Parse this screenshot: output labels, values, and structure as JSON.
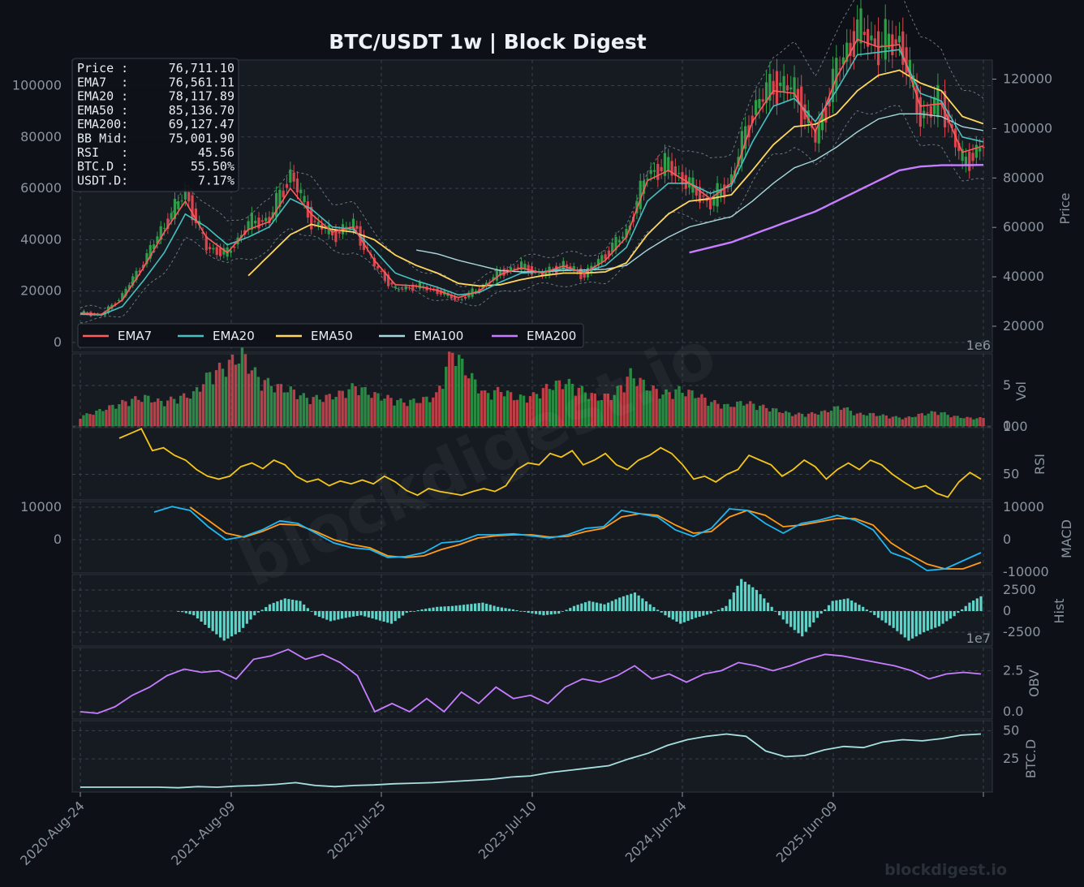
{
  "title": "BTC/USDT  1w  |  Block Digest",
  "watermark": "blockdigest.io",
  "footer_watermark": "blockdigest.io",
  "info_box": [
    [
      "Price :",
      "76,711.10"
    ],
    [
      "EMA7  :",
      "76,561.11"
    ],
    [
      "EMA20 :",
      "78,117.89"
    ],
    [
      "EMA50 :",
      "85,136.70"
    ],
    [
      "EMA200:",
      "69,127.47"
    ],
    [
      "BB Mid:",
      "75,001.90"
    ],
    [
      "RSI   :",
      "45.56"
    ],
    [
      "BTC.D :",
      "55.50%"
    ],
    [
      "USDT.D:",
      "7.17%"
    ]
  ],
  "colors": {
    "background": "#0d1117",
    "panel": "#161b22",
    "grid": "#3a414b",
    "up": "#2e9e49",
    "down": "#d9454f",
    "ema7": "#ff5c5c",
    "ema20": "#45c1c1",
    "ema50": "#ffd75e",
    "ema100": "#a8d8dc",
    "ema200": "#c77dff",
    "rsi": "#f5c518",
    "macd": "#1fb7f0",
    "signal": "#ff9a1a",
    "hist": "#5fd4c8",
    "obv": "#c77dff",
    "btcd": "#a8e0e0"
  },
  "chart_data": [
    {
      "type": "candlestick",
      "panel": "price",
      "x_dates": [
        "2020-08-24",
        "2020-10-05",
        "2020-11-16",
        "2021-01-04",
        "2021-02-15",
        "2021-04-05",
        "2021-05-17",
        "2021-07-05",
        "2021-08-09",
        "2021-10-04",
        "2021-11-08",
        "2021-12-20",
        "2022-02-07",
        "2022-04-04",
        "2022-05-16",
        "2022-06-20",
        "2022-07-25",
        "2022-09-12",
        "2022-11-14",
        "2023-01-09",
        "2023-03-13",
        "2023-04-17",
        "2023-06-12",
        "2023-07-10",
        "2023-09-11",
        "2023-10-23",
        "2023-12-11",
        "2024-03-04",
        "2024-04-08",
        "2024-06-24",
        "2024-08-05",
        "2024-10-07",
        "2024-11-11",
        "2024-12-16",
        "2025-02-03",
        "2025-04-07",
        "2025-06-09",
        "2025-07-14",
        "2025-08-18",
        "2025-10-06",
        "2025-11-17",
        "2026-01-05",
        "2026-02-09",
        "2026-03-23"
      ],
      "close": [
        11650,
        10600,
        18400,
        31200,
        46000,
        58500,
        37000,
        34500,
        46300,
        48200,
        66000,
        47500,
        42000,
        46000,
        30000,
        20500,
        22000,
        20000,
        16500,
        20900,
        27500,
        29700,
        26500,
        30300,
        26200,
        34500,
        43000,
        66000,
        69000,
        61000,
        54000,
        64000,
        90000,
        101000,
        98000,
        79000,
        105500,
        122000,
        115500,
        118000,
        88000,
        94000,
        70000,
        76711.1
      ],
      "ema7": [
        11500,
        10900,
        16500,
        29000,
        43000,
        55000,
        41000,
        35000,
        44000,
        47000,
        60000,
        50000,
        43000,
        45000,
        32000,
        22500,
        22000,
        20300,
        17500,
        20000,
        26500,
        29000,
        27000,
        29800,
        27000,
        32000,
        41000,
        63000,
        67000,
        62000,
        56000,
        62000,
        86000,
        98000,
        97000,
        82000,
        103000,
        118000,
        115000,
        116000,
        92000,
        93000,
        74000,
        76561.11
      ],
      "ema20": [
        11000,
        10700,
        14000,
        24000,
        35000,
        50000,
        45000,
        38000,
        41000,
        45000,
        56000,
        52000,
        45000,
        44000,
        36000,
        27000,
        24000,
        21500,
        18500,
        19500,
        23500,
        27000,
        27500,
        28700,
        27500,
        30000,
        37000,
        55000,
        62000,
        62000,
        58000,
        61000,
        78000,
        92000,
        95000,
        86000,
        98000,
        112000,
        113000,
        114000,
        97000,
        94000,
        80000,
        78117.89
      ],
      "ema50": [
        null,
        null,
        null,
        null,
        null,
        null,
        null,
        null,
        26000,
        34000,
        42000,
        46000,
        44000,
        43000,
        40000,
        34000,
        30000,
        27000,
        23000,
        22000,
        22500,
        24500,
        26000,
        27000,
        27000,
        27500,
        31000,
        42000,
        50000,
        55000,
        56000,
        57500,
        67000,
        77000,
        84000,
        85000,
        89000,
        98000,
        104000,
        106000,
        101000,
        98000,
        88000,
        85136.7
      ],
      "ema100": [
        null,
        null,
        null,
        null,
        null,
        null,
        null,
        null,
        null,
        null,
        null,
        null,
        null,
        null,
        null,
        null,
        36000,
        34500,
        32000,
        30000,
        28000,
        27500,
        27500,
        28000,
        28200,
        28500,
        30000,
        36000,
        41000,
        45000,
        47000,
        49000,
        55000,
        62000,
        68000,
        71000,
        76000,
        82000,
        87000,
        89000,
        89000,
        88000,
        84000,
        82500
      ],
      "ema200": [
        null,
        null,
        null,
        null,
        null,
        null,
        null,
        null,
        null,
        null,
        null,
        null,
        null,
        null,
        null,
        null,
        null,
        null,
        null,
        null,
        null,
        null,
        null,
        null,
        null,
        null,
        null,
        null,
        null,
        35000,
        37000,
        39000,
        42000,
        45000,
        48000,
        51000,
        55000,
        59000,
        63000,
        67000,
        68500,
        69000,
        69000,
        69127.47
      ],
      "legend": [
        "EMA7",
        "EMA20",
        "EMA50",
        "EMA100",
        "EMA200"
      ],
      "legend_placement": "bottom-left",
      "y_left_ticks": [
        "0",
        "20000",
        "40000",
        "60000",
        "80000",
        "100000"
      ],
      "y_right_ticks": [
        "20000",
        "40000",
        "60000",
        "80000",
        "100000",
        "120000"
      ],
      "ylabel": "Price",
      "grid": true
    },
    {
      "type": "bar",
      "panel": "volume",
      "ylabel": "Vol",
      "y_ticks": [
        "0",
        "5"
      ],
      "offset_label": "1e6",
      "values_scaled": [
        1.2,
        1.8,
        2.5,
        3.2,
        3.6,
        3.0,
        3.5,
        4.0,
        6.5,
        7.5,
        9.0,
        6.0,
        5.0,
        4.5,
        3.5,
        3.5,
        4.0,
        5.0,
        4.0,
        3.5,
        3.0,
        3.2,
        3.8,
        9.5,
        6.5,
        4.0,
        4.5,
        3.5,
        3.8,
        5.0,
        5.5,
        4.5,
        3.5,
        4.0,
        6.5,
        5.0,
        4.0,
        4.5,
        4.0,
        3.0,
        2.5,
        3.0,
        2.5,
        2.0,
        1.5,
        1.5,
        1.8,
        2.5,
        1.5,
        1.5,
        1.2,
        1.0,
        1.5,
        1.8,
        1.2,
        1.0,
        1.0
      ]
    },
    {
      "type": "line",
      "panel": "rsi",
      "ylabel": "RSI",
      "y_ticks": [
        "50",
        "100"
      ],
      "ylim": [
        0,
        100
      ],
      "values": [
        88,
        93,
        98,
        75,
        78,
        70,
        65,
        55,
        48,
        45,
        48,
        58,
        62,
        56,
        65,
        60,
        48,
        42,
        45,
        38,
        43,
        40,
        44,
        40,
        48,
        42,
        33,
        28,
        35,
        32,
        30,
        28,
        32,
        35,
        32,
        38,
        55,
        62,
        60,
        72,
        68,
        75,
        60,
        65,
        72,
        60,
        55,
        65,
        70,
        78,
        72,
        60,
        45,
        48,
        42,
        50,
        55,
        70,
        65,
        60,
        48,
        55,
        65,
        58,
        45,
        55,
        62,
        55,
        65,
        60,
        50,
        42,
        35,
        38,
        30,
        26,
        42,
        52,
        45
      ]
    },
    {
      "type": "line",
      "panel": "macd",
      "ylabel": "MACD",
      "y_left_ticks": [
        "0",
        "10000"
      ],
      "y_right_ticks": [
        "-10000",
        "0",
        "10000"
      ],
      "series": [
        {
          "name": "MACD",
          "values": [
            8500,
            10200,
            9000,
            4000,
            0,
            1000,
            3000,
            5800,
            5000,
            2000,
            -1000,
            -2500,
            -3000,
            -5500,
            -5200,
            -4000,
            -1000,
            -500,
            1500,
            1500,
            1800,
            1200,
            500,
            1500,
            3500,
            4000,
            9000,
            8000,
            7000,
            3000,
            1000,
            3500,
            9500,
            9000,
            5000,
            2000,
            5000,
            6000,
            7500,
            6000,
            3000,
            -4000,
            -6000,
            -9500,
            -9000,
            -6500,
            -4000
          ]
        },
        {
          "name": "Signal",
          "values": [
            null,
            null,
            10000,
            6000,
            2000,
            800,
            2500,
            4800,
            4500,
            2500,
            0,
            -1500,
            -2500,
            -5000,
            -5500,
            -5000,
            -3000,
            -1500,
            500,
            1200,
            1500,
            1500,
            800,
            1000,
            2500,
            3500,
            7000,
            8000,
            7500,
            4500,
            2000,
            2500,
            7000,
            9000,
            7500,
            4000,
            4500,
            5500,
            6500,
            6500,
            4500,
            -1000,
            -4500,
            -7500,
            -9000,
            -9000,
            -7000
          ]
        }
      ]
    },
    {
      "type": "bar",
      "panel": "hist",
      "ylabel": "Hist",
      "y_ticks": [
        "2500",
        "0",
        "-2500"
      ],
      "values": [
        0,
        -500,
        -2000,
        -3500,
        -2500,
        -500,
        800,
        1500,
        1200,
        -500,
        -1200,
        -800,
        -500,
        -1000,
        -1500,
        -200,
        200,
        500,
        600,
        800,
        1000,
        500,
        200,
        -200,
        -500,
        -300,
        600,
        1200,
        800,
        1600,
        2200,
        800,
        -500,
        -1500,
        -800,
        -300,
        600,
        3800,
        2500,
        500,
        -1500,
        -3000,
        -800,
        1200,
        1500,
        500,
        -800,
        -2000,
        -3500,
        -2500,
        -1800,
        -600,
        1000,
        2000
      ]
    },
    {
      "type": "line",
      "panel": "obv",
      "ylabel": "OBV",
      "y_ticks": [
        "0.0",
        "2.5"
      ],
      "offset_label": "1e7",
      "values": [
        0.0,
        -0.1,
        0.3,
        1.0,
        1.5,
        2.2,
        2.6,
        2.4,
        2.5,
        2.0,
        3.2,
        3.4,
        3.8,
        3.2,
        3.5,
        3.0,
        2.2,
        0.0,
        0.5,
        0.0,
        0.8,
        0.0,
        1.2,
        0.5,
        1.5,
        0.8,
        1.0,
        0.5,
        1.5,
        2.0,
        1.8,
        2.2,
        2.8,
        2.0,
        2.3,
        1.8,
        2.3,
        2.5,
        3.0,
        2.8,
        2.5,
        2.8,
        3.2,
        3.5,
        3.4,
        3.2,
        3.0,
        2.8,
        2.5,
        2.0,
        2.3,
        2.4,
        2.3
      ]
    },
    {
      "type": "line",
      "panel": "btc_dominance",
      "ylabel": "BTC.D",
      "y_ticks": [
        "25",
        "50"
      ],
      "values": [
        0.0,
        0.0,
        0.0,
        0.0,
        0.0,
        -0.5,
        0.5,
        0.0,
        1.0,
        1.5,
        2.5,
        4.0,
        1.5,
        0.5,
        1.5,
        2.0,
        3.0,
        3.5,
        4.0,
        5.0,
        6.0,
        7.0,
        9.0,
        10.0,
        13.0,
        15.0,
        17.0,
        19.0,
        25.0,
        30.0,
        37.0,
        42.0,
        45.0,
        47.0,
        45.0,
        32.0,
        27.0,
        28.0,
        33.0,
        36.0,
        35.0,
        40.0,
        42.0,
        41.0,
        43.0,
        46.0,
        47.0
      ]
    }
  ],
  "x_axis": {
    "tick_labels": [
      "2020-Aug-24",
      "2021-Aug-09",
      "2022-Jul-25",
      "2023-Jul-10",
      "2024-Jun-24",
      "2025-Jun-09"
    ]
  },
  "panel_labels": {
    "price": "Price",
    "vol": "Vol",
    "rsi": "RSI",
    "macd": "MACD",
    "hist": "Hist",
    "obv": "OBV",
    "btcd": "BTC.D",
    "vol_offset": "1e6",
    "obv_offset": "1e7"
  }
}
